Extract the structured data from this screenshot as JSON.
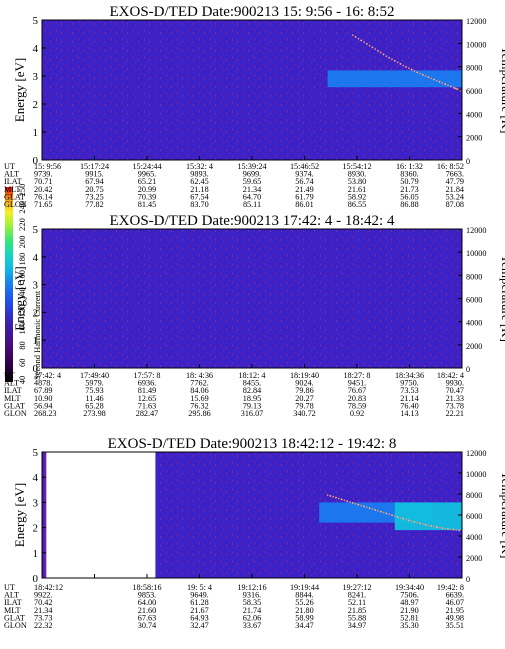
{
  "colorbar": {
    "label": "Second Harmonic Current",
    "ticks": [
      "40",
      "60",
      "80",
      "100",
      "120",
      "140",
      "160",
      "180",
      "200",
      "220",
      "240",
      "250"
    ],
    "colors": [
      "#000000",
      "#2b0040",
      "#4a0a7a",
      "#3a1fb0",
      "#2448e6",
      "#1a7cf0",
      "#10b8e8",
      "#16d6c4",
      "#2fe67a",
      "#9af03a",
      "#f4f020",
      "#f7a818",
      "#f05010",
      "#e01010"
    ]
  },
  "panels": [
    {
      "title": "EXOS-D/TED    Date:900213  15: 9:56 - 16: 8:52",
      "ylabel_left": "Energy [eV]",
      "ylabel_right": "Temperature [K]",
      "yticks_left": [
        "0",
        "1",
        "2",
        "3",
        "4",
        "5"
      ],
      "yticks_right": [
        "0",
        "2000",
        "4000",
        "6000",
        "8000",
        "10000",
        "12000"
      ],
      "row_labels": [
        "UT",
        "ALT",
        "ILAT",
        "MLT",
        "GLAT",
        "GLON"
      ],
      "columns": [
        [
          "15: 9:56",
          "9739.",
          "70.71",
          "20.42",
          "76.14",
          "71.65"
        ],
        [
          "15:17:24",
          "9915.",
          "67.94",
          "20.75",
          "73.25",
          "77.82"
        ],
        [
          "15:24:44",
          "9965.",
          "65.21",
          "20.99",
          "70.39",
          "81.45"
        ],
        [
          "15:32: 4",
          "9893.",
          "62.45",
          "21.18",
          "67.54",
          "83.70"
        ],
        [
          "15:39:24",
          "9699.",
          "59.65",
          "21.34",
          "64.70",
          "85.11"
        ],
        [
          "15:46:52",
          "9374.",
          "56.74",
          "21.49",
          "61.79",
          "86.01"
        ],
        [
          "15:54:12",
          "8930.",
          "53.80",
          "21.61",
          "58.92",
          "86.55"
        ],
        [
          "16: 1:32",
          "8360.",
          "50.79",
          "21.73",
          "56.05",
          "86.88"
        ],
        [
          "16: 8:52",
          "7663.",
          "47.79",
          "21.84",
          "53.24",
          "87.08"
        ]
      ],
      "chart_data": {
        "type": "heatmap",
        "x_range": [
          "15:09:56",
          "16:08:52"
        ],
        "ylim_energy_eV": [
          0,
          5
        ],
        "ylim_temperature_K": [
          0,
          12000
        ],
        "background_level": 110,
        "features": [
          {
            "name": "",
            "x_start_fraction": 0.68,
            "x_end_fraction": 1.0,
            "energy_low_eV": 2.6,
            "energy_high_eV": 3.2,
            "level": 150
          }
        ],
        "temperature_series": {
          "name": "",
          "points": [
            [
              0.74,
              10700
            ],
            [
              0.78,
              9800
            ],
            [
              0.82,
              8900
            ],
            [
              0.86,
              8100
            ],
            [
              0.9,
              7400
            ],
            [
              0.94,
              6800
            ],
            [
              0.98,
              6200
            ],
            [
              1.0,
              5900
            ]
          ]
        }
      }
    },
    {
      "title": "EXOS-D/TED    Date:900213  17:42: 4 - 18:42: 4",
      "ylabel_left": "Energy [eV]",
      "ylabel_right": "Temperature [K]",
      "yticks_left": [
        "0",
        "1",
        "2",
        "3",
        "4",
        "5"
      ],
      "yticks_right": [
        "0",
        "2000",
        "4000",
        "6000",
        "8000",
        "10000",
        "12000"
      ],
      "row_labels": [
        "UT",
        "ALT",
        "ILAT",
        "MLT",
        "GLAT",
        "GLON"
      ],
      "columns": [
        [
          "17:42: 4",
          "4878.",
          "67.89",
          "10.90",
          "56.94",
          "268.23"
        ],
        [
          "17:49:40",
          "5979.",
          "75.93",
          "11.46",
          "65.28",
          "273.98"
        ],
        [
          "17:57: 8",
          "6936.",
          "81.49",
          "12.65",
          "71.63",
          "282.47"
        ],
        [
          "18: 4:36",
          "7762.",
          "84.06",
          "15.69",
          "76.32",
          "295.86"
        ],
        [
          "18:12: 4",
          "8455.",
          "82.84",
          "18.95",
          "79.13",
          "316.07"
        ],
        [
          "18:19:40",
          "9024.",
          "79.86",
          "20.27",
          "79.78",
          "340.72"
        ],
        [
          "18:27: 8",
          "9451.",
          "76.67",
          "20.83",
          "78.59",
          "0.92"
        ],
        [
          "18:34:36",
          "9750.",
          "73.53",
          "21.14",
          "76.40",
          "14.13"
        ],
        [
          "18:42: 4",
          "9930.",
          "70.47",
          "21.33",
          "73.78",
          "22.21"
        ]
      ],
      "chart_data": {
        "type": "heatmap",
        "x_range": [
          "17:42:04",
          "18:42:04"
        ],
        "ylim_energy_eV": [
          0,
          5
        ],
        "ylim_temperature_K": [
          0,
          12000
        ],
        "background_level": 110,
        "features": [],
        "temperature_series": {
          "name": "",
          "points": []
        }
      }
    },
    {
      "title": "EXOS-D/TED    Date:900213  18:42:12 - 19:42: 8",
      "ylabel_left": "Energy [eV]",
      "ylabel_right": "Temperature [K]",
      "yticks_left": [
        "0",
        "1",
        "2",
        "3",
        "4",
        "5"
      ],
      "yticks_right": [
        "0",
        "2000",
        "4000",
        "6000",
        "8000",
        "10000",
        "12000"
      ],
      "row_labels": [
        "UT",
        "ALT",
        "ILAT",
        "MLT",
        "GLAT",
        "GLON"
      ],
      "columns": [
        [
          "18:42:12",
          "9922.",
          "70.42",
          "21.34",
          "73.73",
          "22.32"
        ],
        [
          "",
          "",
          "",
          "",
          "",
          ""
        ],
        [
          "18:58:16",
          "9853.",
          "64.00",
          "21.60",
          "67.63",
          "30.74"
        ],
        [
          "19: 5: 4",
          "9649.",
          "61.28",
          "21.67",
          "64.93",
          "32.47"
        ],
        [
          "19:12:16",
          "9316.",
          "58.35",
          "21.74",
          "62.06",
          "33.67"
        ],
        [
          "19:19:44",
          "8844.",
          "55.26",
          "21.80",
          "58.99",
          "34.47"
        ],
        [
          "19:27:12",
          "8241.",
          "52.11",
          "21.85",
          "55.88",
          "34.97"
        ],
        [
          "19:34:40",
          "7506.",
          "48.97",
          "21.90",
          "52.81",
          "35.30"
        ],
        [
          "19:42: 8",
          "6639.",
          "46.07",
          "21.95",
          "49.98",
          "35.51"
        ]
      ],
      "chart_data": {
        "type": "heatmap",
        "x_range": [
          "18:42:12",
          "19:42:08"
        ],
        "ylim_energy_eV": [
          0,
          5
        ],
        "ylim_temperature_K": [
          0,
          12000
        ],
        "background_level": 110,
        "data_gap_fraction": [
          0.01,
          0.27
        ],
        "features": [
          {
            "name": "",
            "x_start_fraction": 0.66,
            "x_end_fraction": 0.93,
            "energy_low_eV": 2.2,
            "energy_high_eV": 3.0,
            "level": 150
          },
          {
            "name": "",
            "x_start_fraction": 0.84,
            "x_end_fraction": 1.0,
            "energy_low_eV": 1.9,
            "energy_high_eV": 3.0,
            "level": 175
          }
        ],
        "temperature_series": {
          "name": "",
          "points": [
            [
              0.68,
              7900
            ],
            [
              0.72,
              7400
            ],
            [
              0.76,
              6900
            ],
            [
              0.8,
              6400
            ],
            [
              0.84,
              5900
            ],
            [
              0.88,
              5400
            ],
            [
              0.92,
              5000
            ],
            [
              0.96,
              4700
            ],
            [
              1.0,
              4500
            ]
          ]
        }
      }
    }
  ]
}
